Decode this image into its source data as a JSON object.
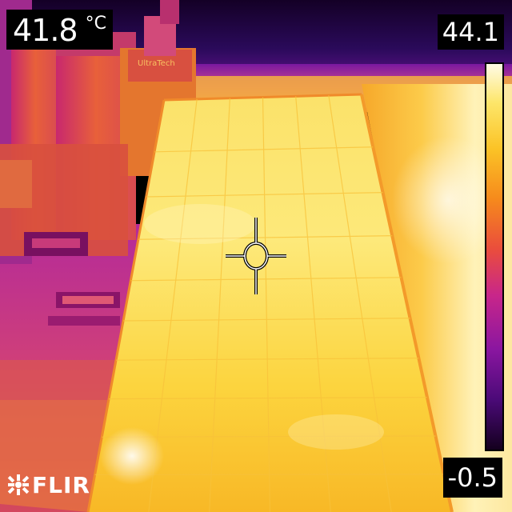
{
  "camera_overlay": {
    "spot_temperature": "41.8",
    "spot_unit": "°C",
    "scale_max": "44.1",
    "scale_min": "-0.5",
    "brand": "FLIR"
  },
  "palette": {
    "name": "iron",
    "colors": [
      "#1a0030",
      "#4b0a78",
      "#8a16a0",
      "#c8268a",
      "#ea4d3c",
      "#f68a1c",
      "#fbc326",
      "#fde66a",
      "#fffbe6"
    ]
  },
  "scene": {
    "description_icons": [
      "solar-panel",
      "rooftop-equipment",
      "crosshair-spot-meter"
    ],
    "equipment_label": "UltraTech"
  }
}
